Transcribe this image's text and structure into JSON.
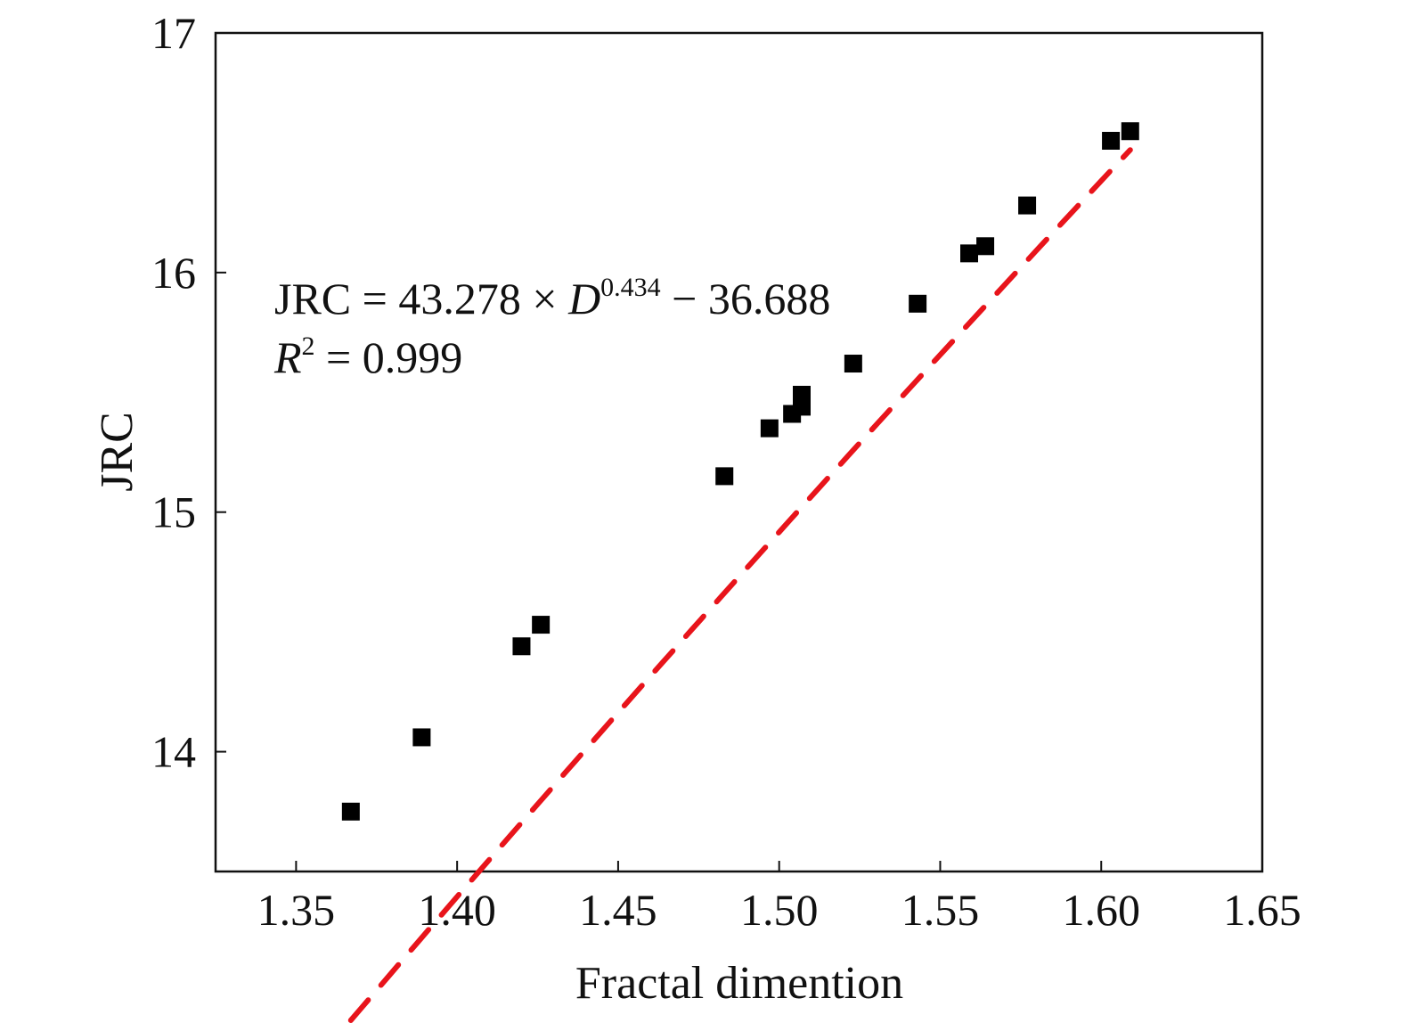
{
  "chart_data": {
    "type": "scatter",
    "title": "",
    "xlabel": "Fractal dimention",
    "ylabel": "JRC",
    "xlim": [
      1.325,
      1.65
    ],
    "ylim": [
      13.5,
      17.0
    ],
    "x_ticks": [
      1.35,
      1.4,
      1.45,
      1.5,
      1.55,
      1.6,
      1.65
    ],
    "x_tick_labels": [
      "1.35",
      "1.40",
      "1.45",
      "1.50",
      "1.55",
      "1.60",
      "1.65"
    ],
    "y_ticks": [
      14,
      15,
      16,
      17
    ],
    "y_tick_labels": [
      "14",
      "15",
      "16",
      "17"
    ],
    "grid": false,
    "legend": "none",
    "series": [
      {
        "kind": "scatter",
        "marker": "square",
        "color": "#000000",
        "points": [
          {
            "x": 1.367,
            "y": 13.75
          },
          {
            "x": 1.389,
            "y": 14.06
          },
          {
            "x": 1.42,
            "y": 14.44
          },
          {
            "x": 1.426,
            "y": 14.53
          },
          {
            "x": 1.483,
            "y": 15.15
          },
          {
            "x": 1.497,
            "y": 15.35
          },
          {
            "x": 1.504,
            "y": 15.41
          },
          {
            "x": 1.507,
            "y": 15.44
          },
          {
            "x": 1.507,
            "y": 15.49
          },
          {
            "x": 1.523,
            "y": 15.62
          },
          {
            "x": 1.543,
            "y": 15.87
          },
          {
            "x": 1.559,
            "y": 16.08
          },
          {
            "x": 1.564,
            "y": 16.11
          },
          {
            "x": 1.577,
            "y": 16.28
          },
          {
            "x": 1.603,
            "y": 16.55
          },
          {
            "x": 1.609,
            "y": 16.59
          }
        ]
      },
      {
        "kind": "fit-line",
        "style": "dashed",
        "color": "#e8141b",
        "equation": {
          "a": 43.278,
          "b": 0.434,
          "c": -36.688
        },
        "x_range": [
          1.367,
          1.609
        ]
      }
    ],
    "annotations": {
      "equation_lhs": "JRC = 43.278 × ",
      "equation_var": "D",
      "equation_exp": "0.434",
      "equation_rhs": " − 36.688",
      "r2_var": "R",
      "r2_exp": "2",
      "r2_rhs": " = 0.999"
    }
  }
}
